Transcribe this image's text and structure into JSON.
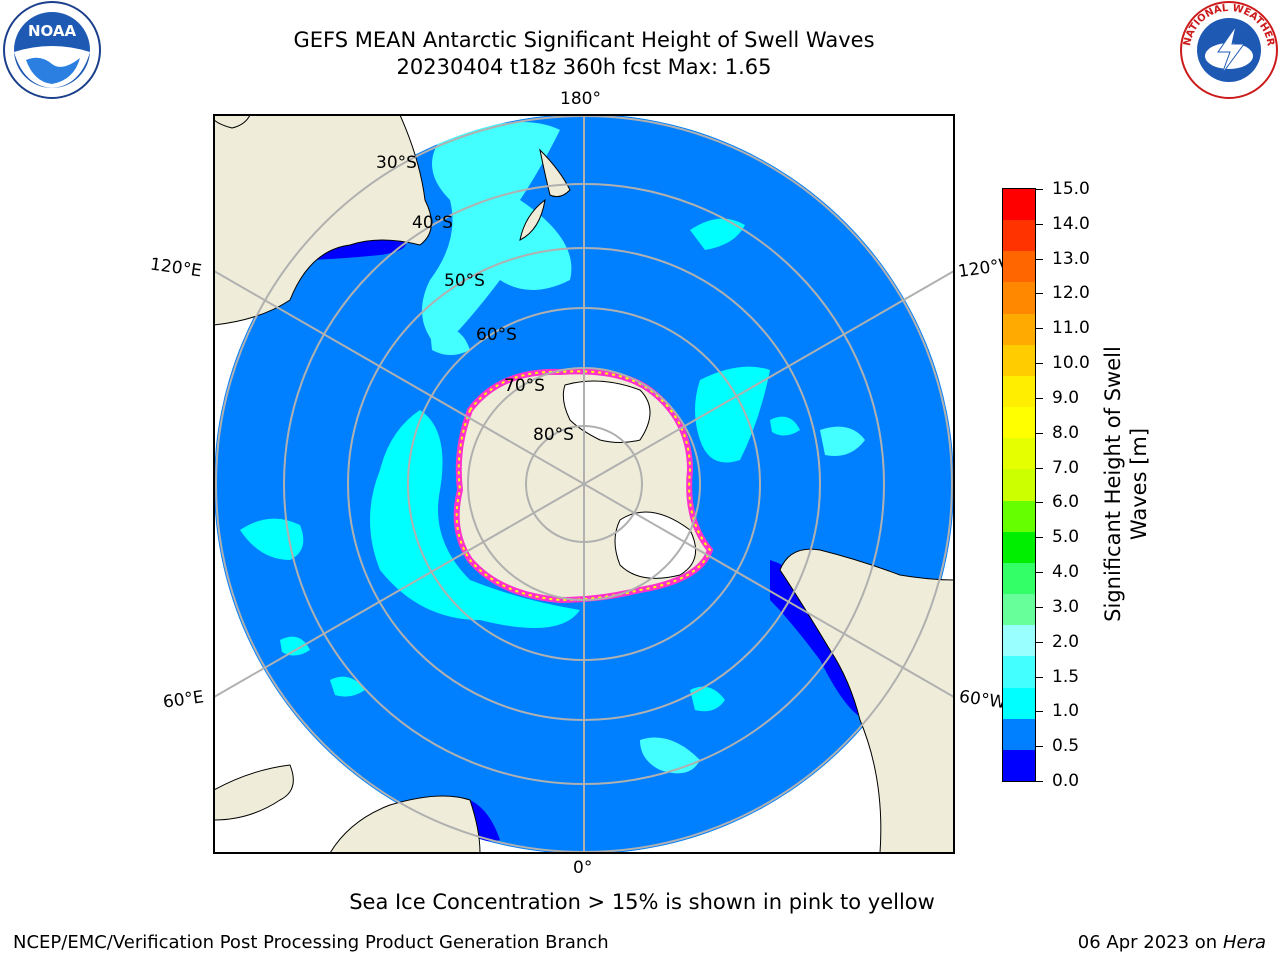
{
  "title": {
    "line1": "GEFS MEAN Antarctic Significant Height of Swell Waves",
    "line2": "20230404 t18z 360h fcst   Max: 1.65"
  },
  "logos": {
    "left": "noaa-logo",
    "left_text": "NOAA",
    "right": "nws-logo",
    "right_text": "NATIONAL WEATHER SERVICE"
  },
  "map": {
    "projection": "south-polar-stereographic",
    "meridian_labels": [
      "180°",
      "120°E",
      "120°W",
      "60°E",
      "60°W",
      "0°"
    ],
    "latitude_labels": [
      "30°S",
      "40°S",
      "50°S",
      "60°S",
      "70°S",
      "80°S"
    ],
    "colors": {
      "ocean_base": "#0080ff",
      "swell_1_1_5": "#00ffff",
      "swell_1_5_2": "#44ffff",
      "swell_0_0_5": "#0000ff",
      "land": "#efedd9",
      "ice_free_white": "#ffffff",
      "sea_ice_edge": [
        "#ff33cc",
        "#ffaa00",
        "#ffff00"
      ],
      "grid": "#b0b0b0"
    }
  },
  "colorbar": {
    "label": "Significant Height of Swell Waves [m]",
    "ticks": [
      "15.0",
      "14.0",
      "13.0",
      "12.0",
      "11.0",
      "10.0",
      "9.0",
      "8.0",
      "7.0",
      "6.0",
      "5.0",
      "4.0",
      "3.0",
      "2.0",
      "1.5",
      "1.0",
      "0.5",
      "0.0"
    ],
    "colors": [
      "#ff0000",
      "#ff3300",
      "#ff6600",
      "#ff8800",
      "#ffaa00",
      "#ffcc00",
      "#ffee00",
      "#ffff00",
      "#e5ff00",
      "#ccff00",
      "#66ff00",
      "#00ee00",
      "#33ff66",
      "#66ff99",
      "#99ffff",
      "#44ffff",
      "#00ffff",
      "#0080ff",
      "#0000ff"
    ]
  },
  "note": "Sea Ice Concentration > 15% is shown in pink to yellow",
  "footer": {
    "left": "NCEP/EMC/Verification Post Processing Product Generation Branch",
    "right_date": "06 Apr 2023 on ",
    "right_host": "Hera"
  }
}
